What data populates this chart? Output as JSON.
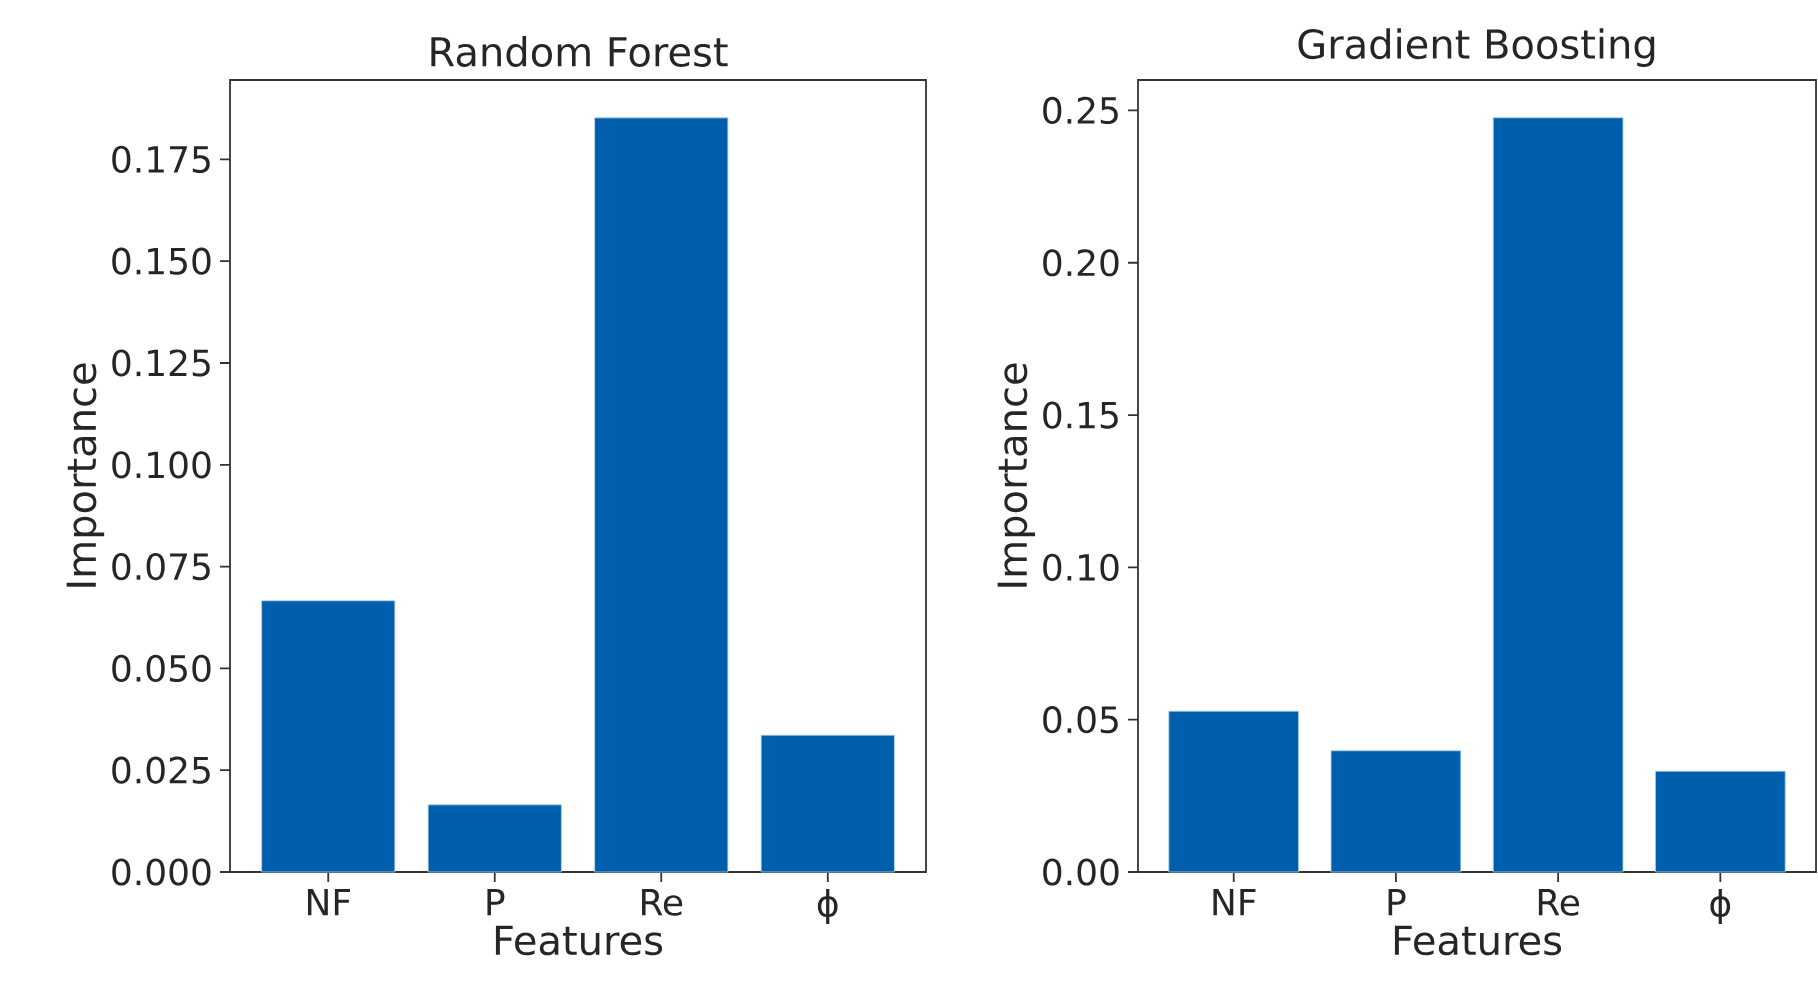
{
  "chart_data": [
    {
      "type": "bar",
      "title": "Random Forest",
      "xlabel": "Features",
      "ylabel": "Importance",
      "categories": [
        "NF",
        "P",
        "Re",
        "ϕ"
      ],
      "values": [
        0.0666,
        0.0165,
        0.1852,
        0.0336
      ],
      "color": "#005fac",
      "ylim": [
        0,
        0.1945
      ],
      "yticks": [
        {
          "value": 0,
          "label": "0.000"
        },
        {
          "value": 0.025,
          "label": "0.025"
        },
        {
          "value": 0.05,
          "label": "0.050"
        },
        {
          "value": 0.075,
          "label": "0.075"
        },
        {
          "value": 0.1,
          "label": "0.100"
        },
        {
          "value": 0.125,
          "label": "0.125"
        },
        {
          "value": 0.15,
          "label": "0.150"
        },
        {
          "value": 0.175,
          "label": "0.175"
        }
      ]
    },
    {
      "type": "bar",
      "title": "Gradient Boosting",
      "xlabel": "Features",
      "ylabel": "Importance",
      "categories": [
        "NF",
        "P",
        "Re",
        "ϕ"
      ],
      "values": [
        0.0528,
        0.0398,
        0.2476,
        0.0331
      ],
      "color": "#005fac",
      "ylim": [
        0,
        0.26
      ],
      "yticks": [
        {
          "value": 0,
          "label": "0.00"
        },
        {
          "value": 0.05,
          "label": "0.05"
        },
        {
          "value": 0.1,
          "label": "0.10"
        },
        {
          "value": 0.15,
          "label": "0.15"
        },
        {
          "value": 0.2,
          "label": "0.20"
        },
        {
          "value": 0.25,
          "label": "0.25"
        }
      ]
    }
  ]
}
